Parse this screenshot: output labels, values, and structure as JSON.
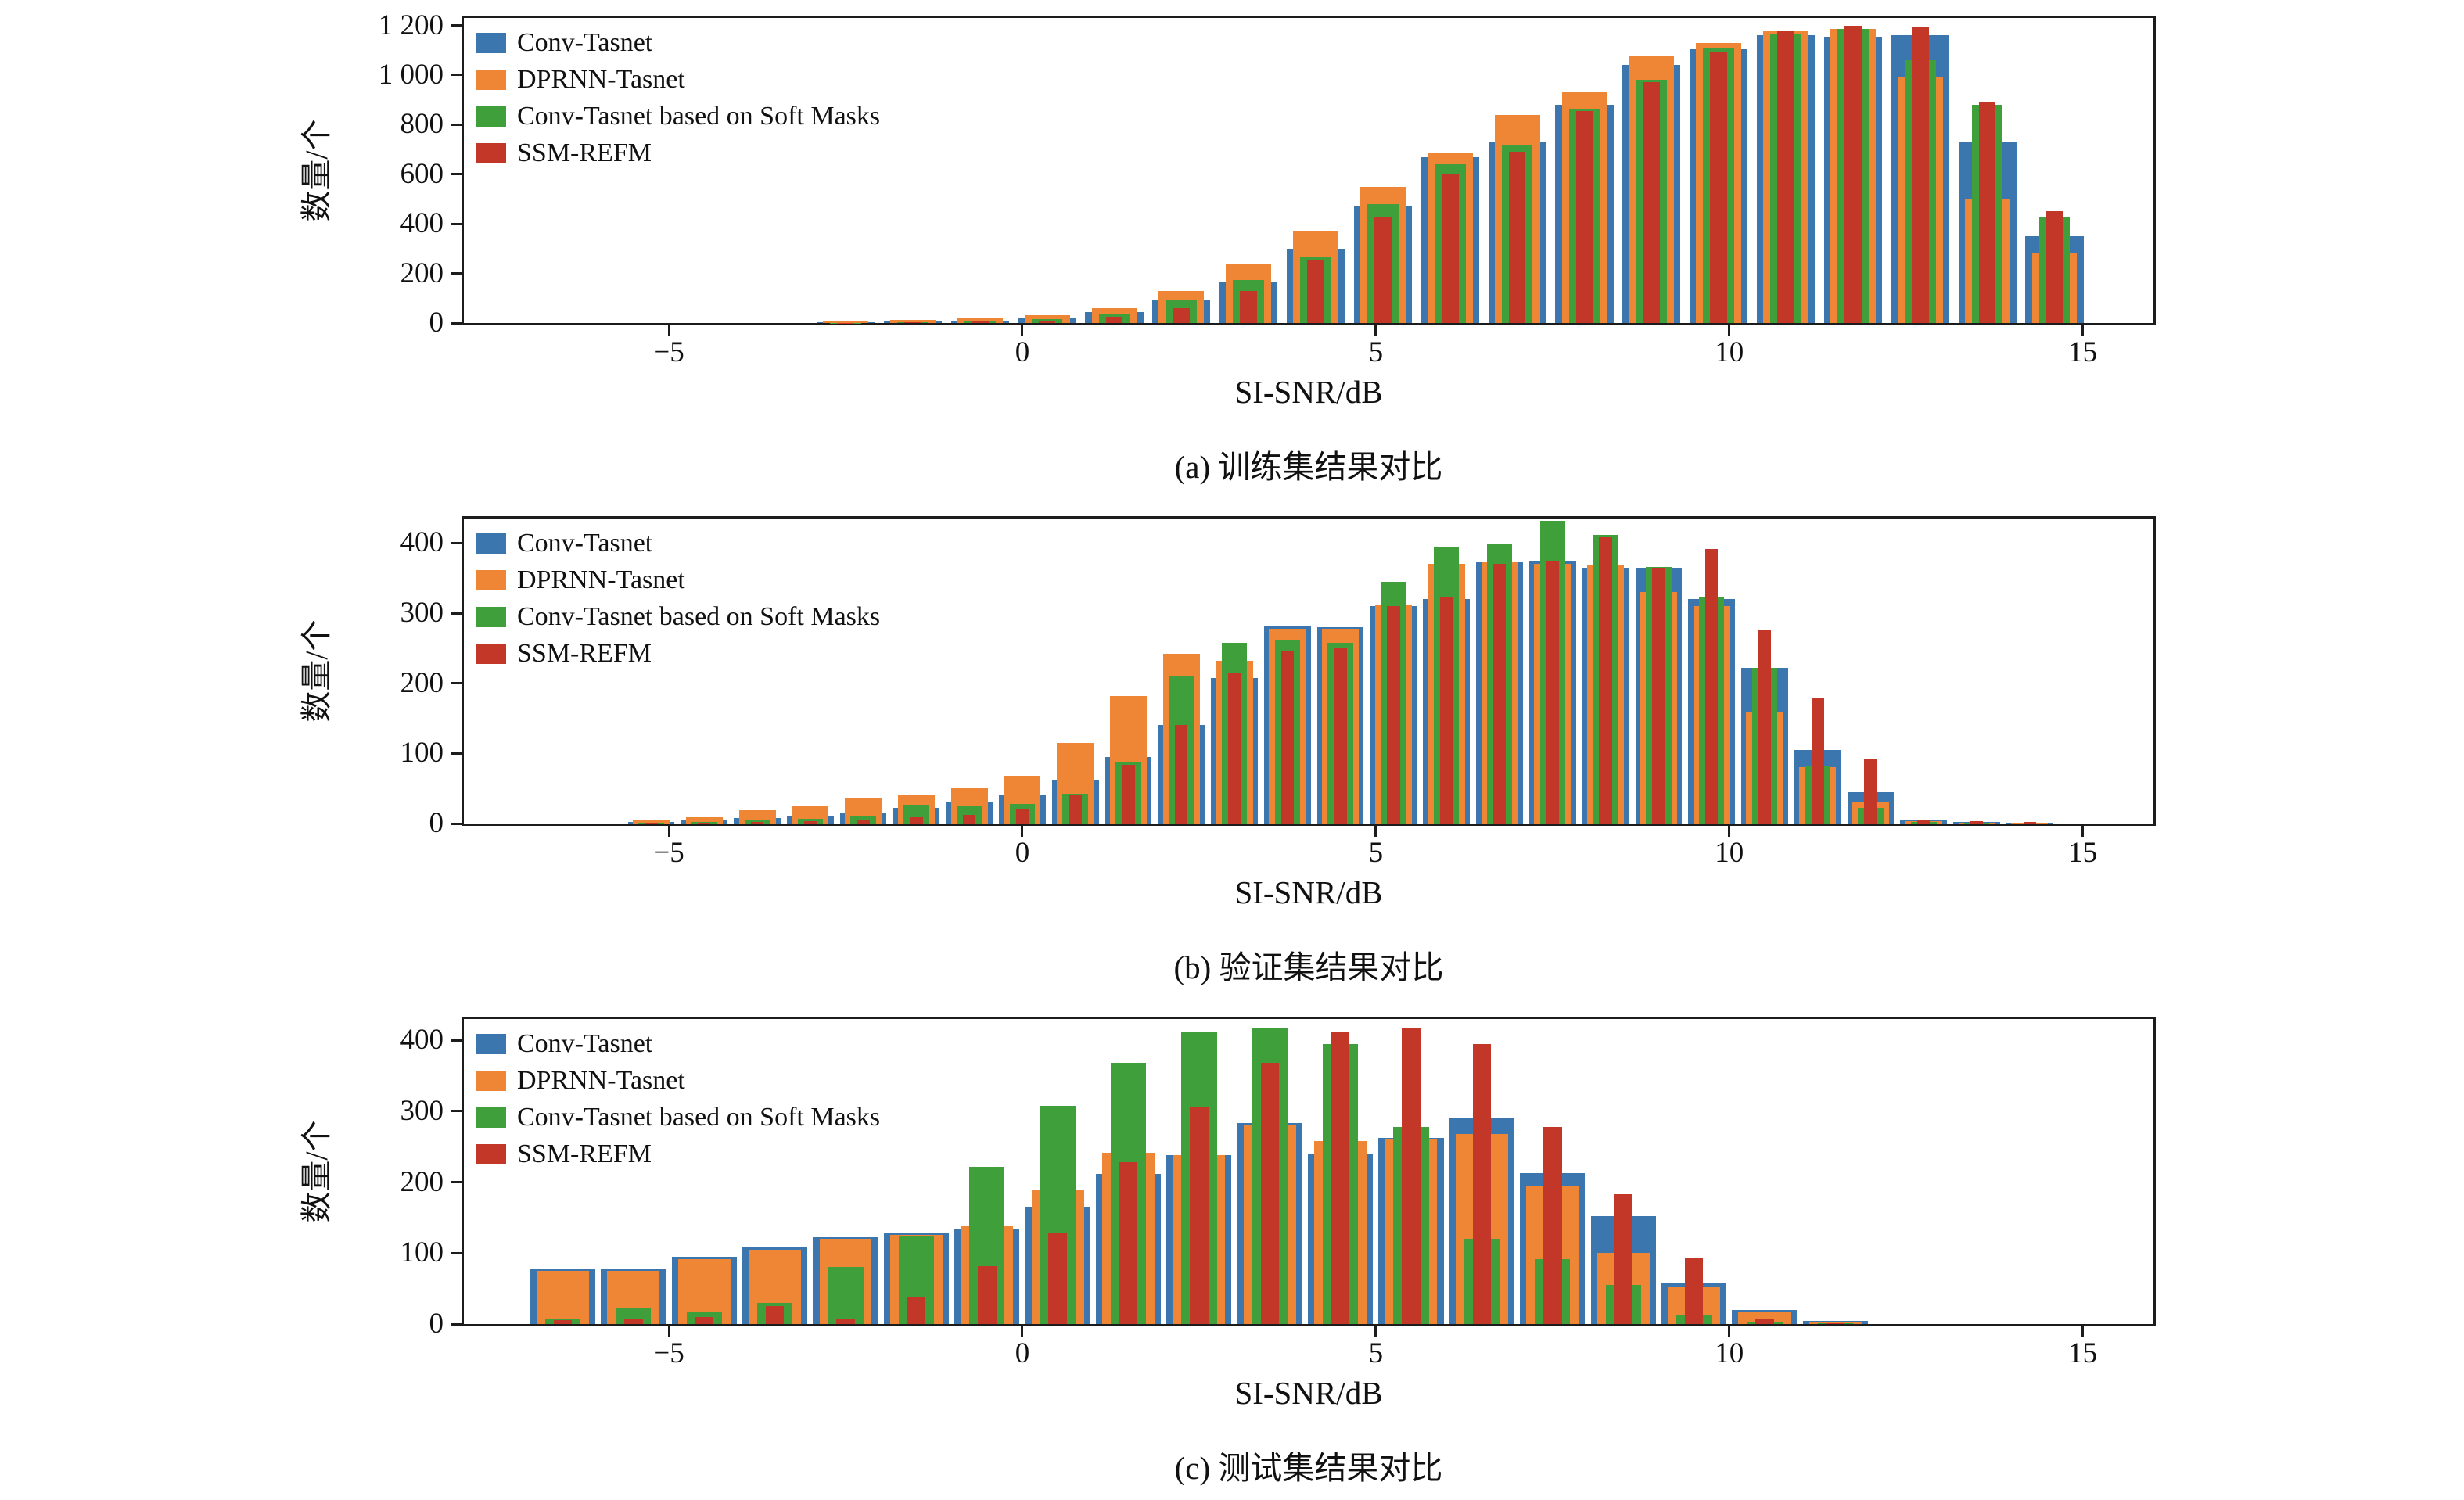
{
  "figure": {
    "background": "#ffffff",
    "axis_color": "#1c1c1c"
  },
  "colors": {
    "conv_tasnet": "#3c76af",
    "dprnn_tasnet": "#ef8636",
    "conv_tasnet_soft_masks": "#3f9f3a",
    "ssm_refm": "#c23728"
  },
  "chart_data": [
    {
      "type": "bar",
      "title": "(a) 训练集结果对比",
      "xlabel": "SI-SNR/dB",
      "ylabel": "数量/个",
      "grid": false,
      "legend_position": "upper left",
      "xlim": [
        -7.9,
        16.0
      ],
      "ylim": [
        0,
        1230
      ],
      "xticks": [
        -5,
        0,
        5,
        10,
        15
      ],
      "xtick_labels": [
        "−5",
        "0",
        "5",
        "10",
        "15"
      ],
      "yticks": [
        0,
        200,
        400,
        600,
        800,
        1000,
        1200
      ],
      "ytick_labels": [
        "0",
        "200",
        "400",
        "600",
        "800",
        "1 000",
        "1 200"
      ],
      "x": [
        -2.5,
        -1.55,
        -0.6,
        0.35,
        1.3,
        2.25,
        3.2,
        4.15,
        5.1,
        6.05,
        7.0,
        7.95,
        8.9,
        9.85,
        10.8,
        11.75,
        12.7,
        13.65,
        14.6
      ],
      "series": [
        {
          "name": "Conv-Tasnet",
          "color": "#3c76af",
          "width": 0.82,
          "values": [
            2,
            5,
            10,
            20,
            45,
            95,
            165,
            295,
            470,
            670,
            730,
            880,
            1040,
            1105,
            1160,
            1155,
            1160,
            730,
            350
          ]
        },
        {
          "name": "DPRNN-Tasnet",
          "color": "#ef8636",
          "width": 0.64,
          "values": [
            6,
            12,
            20,
            32,
            60,
            130,
            240,
            370,
            550,
            685,
            840,
            930,
            1075,
            1130,
            1175,
            1185,
            990,
            500,
            280
          ]
        },
        {
          "name": "Conv-Tasnet based on Soft Masks",
          "color": "#3f9f3a",
          "width": 0.44,
          "values": [
            1,
            4,
            8,
            15,
            35,
            90,
            175,
            265,
            480,
            640,
            720,
            860,
            980,
            1110,
            1165,
            1185,
            1060,
            880,
            430
          ]
        },
        {
          "name": "SSM-REFM",
          "color": "#c23728",
          "width": 0.24,
          "values": [
            1,
            2,
            5,
            10,
            25,
            60,
            130,
            255,
            430,
            600,
            690,
            855,
            970,
            1095,
            1180,
            1200,
            1195,
            890,
            450
          ]
        }
      ]
    },
    {
      "type": "bar",
      "title": "(b) 验证集结果对比",
      "xlabel": "SI-SNR/dB",
      "ylabel": "数量/个",
      "grid": false,
      "legend_position": "upper left",
      "xlim": [
        -7.9,
        16.0
      ],
      "ylim": [
        0,
        435
      ],
      "xticks": [
        -5,
        0,
        5,
        10,
        15
      ],
      "xtick_labels": [
        "−5",
        "0",
        "5",
        "10",
        "15"
      ],
      "yticks": [
        0,
        100,
        200,
        300,
        400
      ],
      "ytick_labels": [
        "0",
        "100",
        "200",
        "300",
        "400"
      ],
      "x": [
        -5.25,
        -4.5,
        -3.75,
        -3.0,
        -2.25,
        -1.5,
        -0.75,
        0.0,
        0.75,
        1.5,
        2.25,
        3.0,
        3.75,
        4.5,
        5.25,
        6.0,
        6.75,
        7.5,
        8.25,
        9.0,
        9.75,
        10.5,
        11.25,
        12.0,
        12.75,
        13.5,
        14.25
      ],
      "series": [
        {
          "name": "Conv-Tasnet",
          "color": "#3c76af",
          "width": 0.66,
          "values": [
            2,
            5,
            8,
            10,
            14,
            22,
            30,
            40,
            62,
            95,
            140,
            208,
            282,
            280,
            310,
            320,
            372,
            375,
            365,
            365,
            320,
            222,
            105,
            45,
            4,
            2,
            1
          ]
        },
        {
          "name": "DPRNN-Tasnet",
          "color": "#ef8636",
          "width": 0.52,
          "values": [
            5,
            9,
            19,
            26,
            37,
            40,
            50,
            68,
            115,
            182,
            242,
            232,
            278,
            278,
            312,
            370,
            372,
            370,
            368,
            330,
            310,
            158,
            80,
            30,
            3,
            1,
            1
          ]
        },
        {
          "name": "Conv-Tasnet based on Soft Masks",
          "color": "#3f9f3a",
          "width": 0.36,
          "values": [
            1,
            2,
            5,
            7,
            10,
            27,
            24,
            28,
            42,
            88,
            210,
            258,
            262,
            258,
            345,
            395,
            398,
            432,
            412,
            366,
            322,
            222,
            82,
            22,
            2,
            1,
            0
          ]
        },
        {
          "name": "SSM-REFM",
          "color": "#c23728",
          "width": 0.18,
          "values": [
            1,
            1,
            2,
            3,
            5,
            9,
            12,
            20,
            40,
            84,
            140,
            215,
            246,
            250,
            310,
            322,
            370,
            375,
            408,
            365,
            392,
            275,
            180,
            92,
            5,
            3,
            2
          ]
        }
      ]
    },
    {
      "type": "bar",
      "title": "(c) 测试集结果对比",
      "xlabel": "SI-SNR/dB",
      "ylabel": "数量/个",
      "grid": false,
      "legend_position": "upper left",
      "xlim": [
        -7.9,
        16.0
      ],
      "ylim": [
        0,
        430
      ],
      "xticks": [
        -5,
        0,
        5,
        10,
        15
      ],
      "xtick_labels": [
        "−5",
        "0",
        "5",
        "10",
        "15"
      ],
      "yticks": [
        0,
        100,
        200,
        300,
        400
      ],
      "ytick_labels": [
        "0",
        "100",
        "200",
        "300",
        "400"
      ],
      "x": [
        -6.5,
        -5.5,
        -4.5,
        -3.5,
        -2.5,
        -1.5,
        -0.5,
        0.5,
        1.5,
        2.5,
        3.5,
        4.5,
        5.5,
        6.5,
        7.5,
        8.5,
        9.5,
        10.5,
        11.5
      ],
      "series": [
        {
          "name": "Conv-Tasnet",
          "color": "#3c76af",
          "width": 0.92,
          "values": [
            78,
            78,
            95,
            108,
            122,
            128,
            135,
            165,
            212,
            238,
            283,
            240,
            262,
            290,
            213,
            152,
            57,
            20,
            4
          ]
        },
        {
          "name": "DPRNN-Tasnet",
          "color": "#ef8636",
          "width": 0.74,
          "values": [
            75,
            75,
            92,
            105,
            120,
            126,
            138,
            190,
            242,
            238,
            280,
            258,
            260,
            268,
            195,
            100,
            52,
            18,
            3
          ]
        },
        {
          "name": "Conv-Tasnet based on Soft Masks",
          "color": "#3f9f3a",
          "width": 0.5,
          "values": [
            8,
            22,
            18,
            30,
            80,
            125,
            222,
            308,
            368,
            412,
            418,
            395,
            278,
            120,
            92,
            55,
            12,
            3,
            1
          ]
        },
        {
          "name": "SSM-REFM",
          "color": "#c23728",
          "width": 0.26,
          "values": [
            5,
            8,
            10,
            25,
            8,
            38,
            82,
            128,
            228,
            305,
            368,
            412,
            418,
            395,
            278,
            183,
            93,
            8,
            1
          ]
        }
      ]
    }
  ]
}
